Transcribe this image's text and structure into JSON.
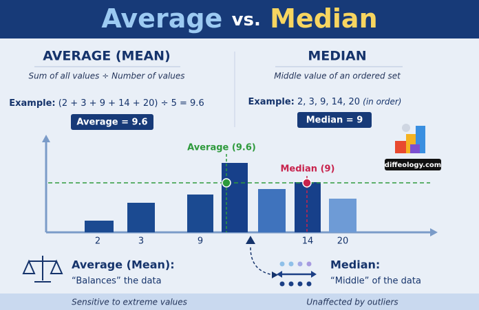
{
  "header": {
    "title_average": "Average",
    "title_vs": "vs.",
    "title_median": "Median"
  },
  "average": {
    "heading": "AVERAGE (MEAN)",
    "definition": "Sum of all values ÷ Number of values",
    "example_label": "Example:",
    "example": "(2 + 3 + 9 + 14 + 20) ÷ 5 = 9.6",
    "result": "Average = 9.6"
  },
  "median": {
    "heading": "MEDIAN",
    "definition": "Middle value of an ordered set",
    "example_label": "Example:",
    "example": "2, 3, 9, 14, 20",
    "example_note": "(in order)",
    "result": "Median = 9"
  },
  "logo": "diffeology.com",
  "chart": {
    "x_labels": [
      "2",
      "3",
      "9",
      "14",
      "20"
    ],
    "average_label": "Average (9.6)",
    "median_label": "Median (9)"
  },
  "footer": {
    "average_title": "Average (Mean):",
    "average_desc": "“Balances” the data",
    "median_title": "Median:",
    "median_desc": "“Middle” of the data",
    "left_note": "Sensitive to extreme values",
    "right_note": "Unaffected by outliers"
  }
}
